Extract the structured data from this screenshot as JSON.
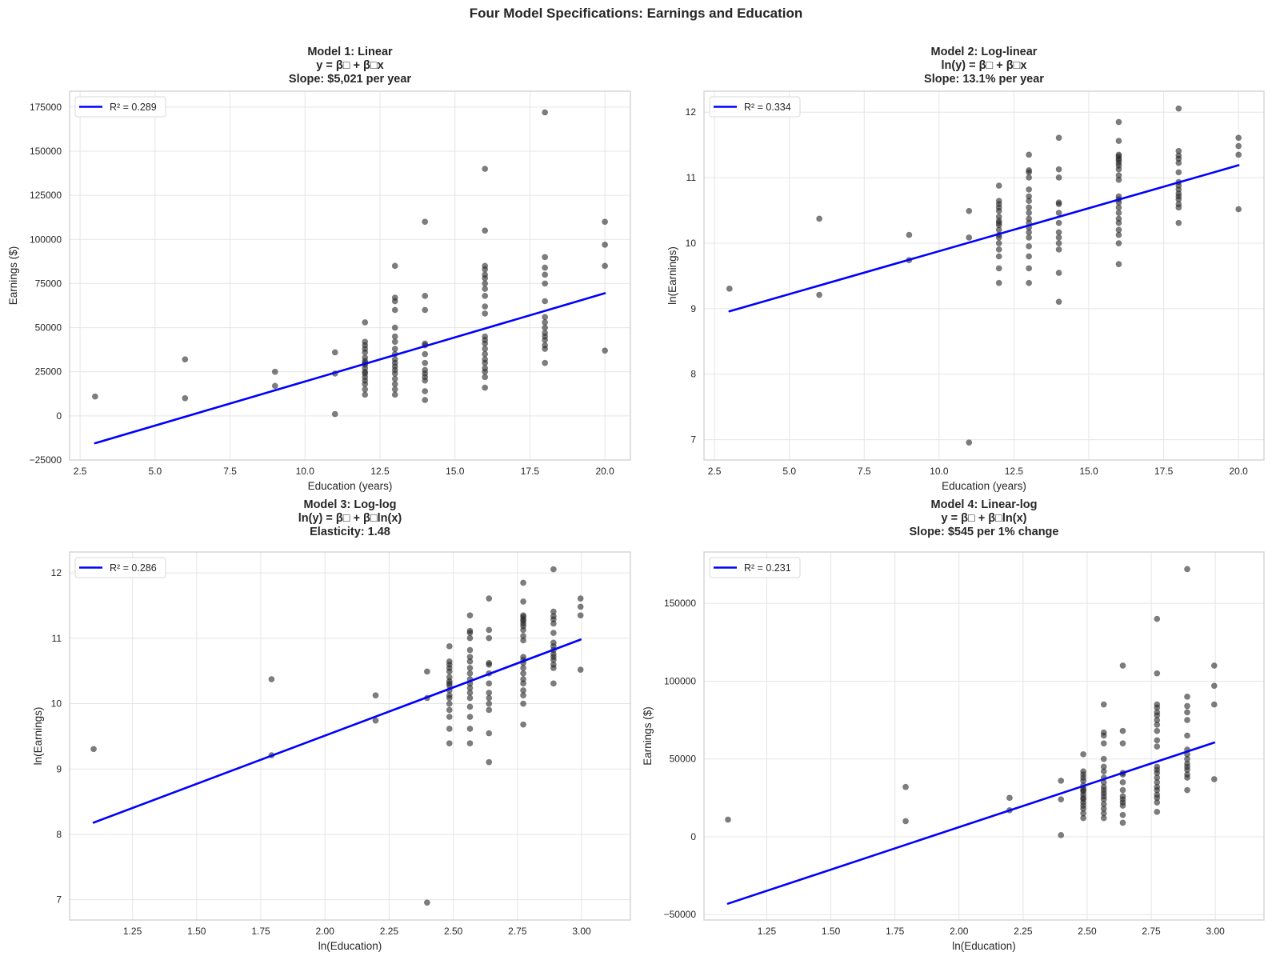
{
  "suptitle": "Four Model Specifications: Earnings and Education",
  "colors": {
    "fit_line": "#0000ff",
    "points": "#262626",
    "grid": "#e5e5e5",
    "spine": "#cccccc"
  },
  "chart_data": [
    {
      "type": "scatter",
      "id": "model1",
      "title_lines": [
        "Model 1: Linear",
        "y = β□ + β□x",
        "Slope: $5,021 per year"
      ],
      "xlabel": "Education (years)",
      "ylabel": "Earnings ($)",
      "x_transform": "none",
      "y_transform": "none",
      "xlim": [
        2.15,
        20.85
      ],
      "ylim": [
        -25000,
        184000
      ],
      "xticks": [
        2.5,
        5.0,
        7.5,
        10.0,
        12.5,
        15.0,
        17.5,
        20.0
      ],
      "xtick_labels": [
        "2.5",
        "5.0",
        "7.5",
        "10.0",
        "12.5",
        "15.0",
        "17.5",
        "20.0"
      ],
      "yticks": [
        -25000,
        0,
        25000,
        50000,
        75000,
        100000,
        125000,
        150000,
        175000
      ],
      "ytick_labels": [
        "−25000",
        "0",
        "25000",
        "50000",
        "75000",
        "100000",
        "125000",
        "150000",
        "175000"
      ],
      "legend": {
        "label": "R² = 0.289",
        "position": "upper-left"
      },
      "fit_line": {
        "x": [
          3,
          20
        ],
        "y": [
          -15500,
          69500
        ]
      },
      "grid": true
    },
    {
      "type": "scatter",
      "id": "model2",
      "title_lines": [
        "Model 2: Log-linear",
        "ln(y) = β□ + β□x",
        "Slope: 13.1% per year"
      ],
      "xlabel": "Education (years)",
      "ylabel": "ln(Earnings)",
      "x_transform": "none",
      "y_transform": "ln",
      "xlim": [
        2.15,
        20.85
      ],
      "ylim": [
        6.69,
        12.32
      ],
      "xticks": [
        2.5,
        5.0,
        7.5,
        10.0,
        12.5,
        15.0,
        17.5,
        20.0
      ],
      "xtick_labels": [
        "2.5",
        "5.0",
        "7.5",
        "10.0",
        "12.5",
        "15.0",
        "17.5",
        "20.0"
      ],
      "yticks": [
        7,
        8,
        9,
        10,
        11,
        12
      ],
      "ytick_labels": [
        "7",
        "8",
        "9",
        "10",
        "11",
        "12"
      ],
      "legend": {
        "label": "R² = 0.334",
        "position": "upper-left"
      },
      "fit_line": {
        "x": [
          3,
          20
        ],
        "y": [
          8.96,
          11.19
        ]
      },
      "grid": true
    },
    {
      "type": "scatter",
      "id": "model3",
      "title_lines": [
        "Model 3: Log-log",
        "ln(y) = β□ + β□ln(x)",
        "Elasticity: 1.48"
      ],
      "xlabel": "ln(Education)",
      "ylabel": "ln(Earnings)",
      "x_transform": "ln",
      "y_transform": "ln",
      "xlim": [
        1.005,
        3.19
      ],
      "ylim": [
        6.69,
        12.32
      ],
      "xticks": [
        1.25,
        1.5,
        1.75,
        2.0,
        2.25,
        2.5,
        2.75,
        3.0
      ],
      "xtick_labels": [
        "1.25",
        "1.50",
        "1.75",
        "2.00",
        "2.25",
        "2.50",
        "2.75",
        "3.00"
      ],
      "yticks": [
        7,
        8,
        9,
        10,
        11,
        12
      ],
      "ytick_labels": [
        "7",
        "8",
        "9",
        "10",
        "11",
        "12"
      ],
      "legend": {
        "label": "R² = 0.286",
        "position": "upper-left"
      },
      "fit_line": {
        "x": [
          1.0986,
          2.9957
        ],
        "y": [
          8.18,
          10.98
        ]
      },
      "grid": true
    },
    {
      "type": "scatter",
      "id": "model4",
      "title_lines": [
        "Model 4: Linear-log",
        "y = β□ + β□ln(x)",
        "Slope: $545 per 1% change"
      ],
      "xlabel": "ln(Education)",
      "ylabel": "Earnings ($)",
      "x_transform": "ln",
      "y_transform": "none",
      "xlim": [
        1.005,
        3.19
      ],
      "ylim": [
        -53500,
        183000
      ],
      "xticks": [
        1.25,
        1.5,
        1.75,
        2.0,
        2.25,
        2.5,
        2.75,
        3.0
      ],
      "xtick_labels": [
        "1.25",
        "1.50",
        "1.75",
        "2.00",
        "2.25",
        "2.50",
        "2.75",
        "3.00"
      ],
      "yticks": [
        -50000,
        0,
        50000,
        100000,
        150000
      ],
      "ytick_labels": [
        "−50000",
        "0",
        "50000",
        "100000",
        "150000"
      ],
      "legend": {
        "label": "R² = 0.231",
        "position": "upper-left"
      },
      "fit_line": {
        "x": [
          1.0986,
          2.9957
        ],
        "y": [
          -43000,
          60500
        ]
      },
      "grid": true
    }
  ],
  "observations": {
    "education_years": [
      3,
      6,
      6,
      9,
      9,
      11,
      11,
      11,
      12,
      12,
      12,
      12,
      12,
      12,
      12,
      12,
      12,
      12,
      12,
      12,
      12,
      12,
      12,
      12,
      12,
      13,
      13,
      13,
      13,
      13,
      13,
      13,
      13,
      13,
      13,
      13,
      13,
      13,
      13,
      13,
      13,
      13,
      13,
      14,
      14,
      14,
      14,
      14,
      14,
      14,
      14,
      14,
      14,
      14,
      14,
      14,
      16,
      16,
      16,
      16,
      16,
      16,
      16,
      16,
      16,
      16,
      16,
      16,
      16,
      16,
      16,
      16,
      16,
      16,
      16,
      16,
      16,
      16,
      18,
      18,
      18,
      18,
      18,
      18,
      18,
      18,
      18,
      18,
      18,
      18,
      18,
      18,
      18,
      20,
      20,
      20,
      20
    ],
    "earnings": [
      11000,
      32000,
      10000,
      25000,
      17000,
      36000,
      24000,
      1050,
      53000,
      42000,
      40000,
      38000,
      36000,
      33000,
      31000,
      30000,
      29000,
      27000,
      25000,
      24000,
      22000,
      20000,
      18000,
      15000,
      12000,
      85000,
      67000,
      65000,
      60000,
      50000,
      45000,
      42000,
      38000,
      35000,
      32000,
      30000,
      28000,
      26000,
      24000,
      21000,
      18000,
      15000,
      12000,
      110000,
      68000,
      60000,
      41000,
      40000,
      35000,
      30000,
      26000,
      24000,
      22000,
      20000,
      14000,
      9000,
      140000,
      105000,
      85000,
      83000,
      80000,
      78000,
      75000,
      72000,
      68000,
      62000,
      58000,
      45000,
      43000,
      41000,
      38000,
      35000,
      32000,
      30000,
      27000,
      25000,
      22000,
      16000,
      172000,
      90000,
      84000,
      80000,
      75000,
      65000,
      56000,
      53000,
      50000,
      47000,
      45000,
      43000,
      40000,
      38000,
      30000,
      110000,
      97000,
      85000,
      37000
    ]
  }
}
